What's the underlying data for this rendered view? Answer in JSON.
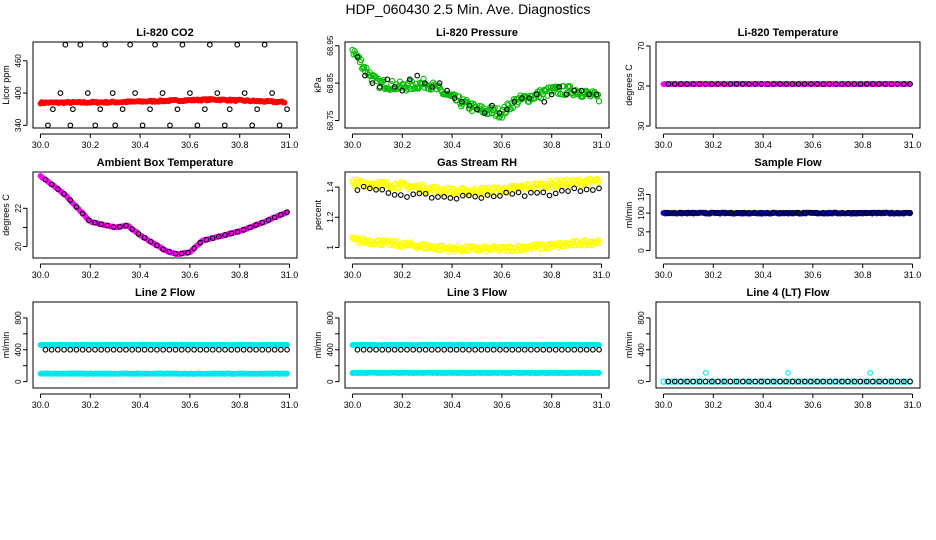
{
  "page_title": "HDP_060430  2.5 Min. Ave. Diagnostics",
  "chart_data": [
    {
      "type": "scatter",
      "title": "Li-820 CO2",
      "ylabel": "Licor ppm",
      "xlim": [
        29.97,
        31.03
      ],
      "ylim": [
        335,
        495
      ],
      "xticks": [
        30.0,
        30.2,
        30.4,
        30.6,
        30.8,
        31.0
      ],
      "xtick_labels": [
        "30.0",
        "30.2",
        "30.4",
        "30.6",
        "30.8",
        "31.0"
      ],
      "yticks": [
        340,
        400,
        460
      ],
      "series": [
        {
          "name": "co2_1min",
          "color": "#ff0000",
          "filled": true,
          "dense": true,
          "x_range": [
            30.0,
            30.98
          ],
          "n": 180,
          "pieces": [
            [
              30.0,
              382
            ],
            [
              30.3,
              383
            ],
            [
              30.7,
              388
            ],
            [
              30.98,
              383
            ]
          ],
          "noise": 1.5
        },
        {
          "name": "co2_diag",
          "color": "#000000",
          "filled": false,
          "x": [
            30.03,
            30.05,
            30.08,
            30.1,
            30.12,
            30.13,
            30.16,
            30.19,
            30.22,
            30.24,
            30.26,
            30.29,
            30.3,
            30.33,
            30.36,
            30.38,
            30.41,
            30.44,
            30.46,
            30.49,
            30.52,
            30.55,
            30.57,
            30.6,
            30.63,
            30.66,
            30.68,
            30.71,
            30.74,
            30.76,
            30.79,
            30.82,
            30.85,
            30.87,
            30.9,
            30.93,
            30.96,
            30.99
          ],
          "y": [
            340,
            370,
            400,
            490,
            340,
            370,
            490,
            400,
            340,
            370,
            490,
            400,
            340,
            370,
            490,
            400,
            340,
            370,
            490,
            400,
            340,
            370,
            490,
            400,
            340,
            370,
            490,
            400,
            340,
            370,
            490,
            400,
            340,
            370,
            490,
            400,
            340,
            370
          ]
        }
      ]
    },
    {
      "type": "scatter",
      "title": "Li-820 Pressure",
      "ylabel": "kPa",
      "xlim": [
        29.97,
        31.03
      ],
      "ylim": [
        68.73,
        68.96
      ],
      "xticks": [
        30.0,
        30.2,
        30.4,
        30.6,
        30.8,
        31.0
      ],
      "xtick_labels": [
        "30.0",
        "30.2",
        "30.4",
        "30.6",
        "30.8",
        "31.0"
      ],
      "yticks": [
        68.75,
        68.85,
        68.95
      ],
      "series": [
        {
          "name": "pressure_1min",
          "color": "#00bb00",
          "filled": false,
          "dense": true,
          "x_range": [
            30.0,
            30.99
          ],
          "n": 230,
          "pieces": [
            [
              30.0,
              68.94
            ],
            [
              30.05,
              68.89
            ],
            [
              30.1,
              68.85
            ],
            [
              30.2,
              68.84
            ],
            [
              30.3,
              68.85
            ],
            [
              30.4,
              68.81
            ],
            [
              30.5,
              68.78
            ],
            [
              30.6,
              68.77
            ],
            [
              30.65,
              68.8
            ],
            [
              30.7,
              68.81
            ],
            [
              30.8,
              68.83
            ],
            [
              30.9,
              68.83
            ],
            [
              30.99,
              68.81
            ]
          ],
          "noise": 0.013
        },
        {
          "name": "pressure_diag",
          "color": "#000000",
          "filled": false,
          "x": [
            30.02,
            30.05,
            30.08,
            30.11,
            30.14,
            30.17,
            30.2,
            30.23,
            30.26,
            30.29,
            30.32,
            30.35,
            30.38,
            30.41,
            30.44,
            30.47,
            30.5,
            30.53,
            30.56,
            30.59,
            30.62,
            30.65,
            30.68,
            30.71,
            30.74,
            30.77,
            30.8,
            30.83,
            30.86,
            30.89,
            30.92,
            30.95,
            30.98
          ],
          "y": [
            68.92,
            68.87,
            68.85,
            68.84,
            68.86,
            68.84,
            68.83,
            68.86,
            68.87,
            68.85,
            68.84,
            68.85,
            68.83,
            68.81,
            68.8,
            68.79,
            68.78,
            68.77,
            68.79,
            68.77,
            68.78,
            68.8,
            68.81,
            68.81,
            68.82,
            68.8,
            68.82,
            68.84,
            68.82,
            68.83,
            68.83,
            68.82,
            68.82
          ]
        }
      ]
    },
    {
      "type": "scatter",
      "title": "Li-820 Temperature",
      "ylabel": "degrees C",
      "xlim": [
        29.97,
        31.03
      ],
      "ylim": [
        29,
        72
      ],
      "xticks": [
        30.0,
        30.2,
        30.4,
        30.6,
        30.8,
        31.0
      ],
      "xtick_labels": [
        "30.0",
        "30.2",
        "30.4",
        "30.6",
        "30.8",
        "31.0"
      ],
      "yticks": [
        30,
        50,
        70
      ],
      "series": [
        {
          "name": "temp_1min",
          "color": "#ff00ff",
          "filled": true,
          "dense": true,
          "x_range": [
            30.0,
            30.99
          ],
          "n": 150,
          "pieces": [
            [
              30.0,
              51
            ],
            [
              30.99,
              51
            ]
          ],
          "noise": 0.1
        },
        {
          "name": "temp_diag",
          "color": "#000000",
          "filled": false,
          "x_range": [
            30.02,
            30.99
          ],
          "n": 40,
          "pieces": [
            [
              30.0,
              51
            ],
            [
              31.0,
              51
            ]
          ],
          "noise": 0
        }
      ]
    },
    {
      "type": "scatter",
      "title": "Ambient Box Temperature",
      "ylabel": "degrees C",
      "xlim": [
        29.97,
        31.03
      ],
      "ylim": [
        19.4,
        23.9
      ],
      "xticks": [
        30.0,
        30.2,
        30.4,
        30.6,
        30.8,
        31.0
      ],
      "xtick_labels": [
        "30.0",
        "30.2",
        "30.4",
        "30.6",
        "30.8",
        "31.0"
      ],
      "yticks": [
        20,
        21,
        22
      ],
      "ytick_labels": [
        "20",
        "",
        "22"
      ],
      "series": [
        {
          "name": "box_temp_1min",
          "color": "#ff00ff",
          "filled": true,
          "dense": true,
          "x_range": [
            30.0,
            30.99
          ],
          "n": 200,
          "pieces": [
            [
              30.0,
              23.7
            ],
            [
              30.1,
              22.7
            ],
            [
              30.2,
              21.3
            ],
            [
              30.3,
              21.0
            ],
            [
              30.35,
              21.1
            ],
            [
              30.4,
              20.6
            ],
            [
              30.5,
              19.8
            ],
            [
              30.55,
              19.6
            ],
            [
              30.6,
              19.7
            ],
            [
              30.65,
              20.3
            ],
            [
              30.8,
              20.8
            ],
            [
              30.9,
              21.3
            ],
            [
              30.99,
              21.8
            ]
          ],
          "noise": 0.02
        },
        {
          "name": "box_temp_diag",
          "color": "#000000",
          "filled": false,
          "x_range": [
            30.02,
            30.99
          ],
          "n": 40,
          "pieces": [
            [
              30.0,
              23.7
            ],
            [
              30.1,
              22.7
            ],
            [
              30.2,
              21.3
            ],
            [
              30.3,
              21.0
            ],
            [
              30.35,
              21.1
            ],
            [
              30.4,
              20.6
            ],
            [
              30.5,
              19.8
            ],
            [
              30.55,
              19.6
            ],
            [
              30.6,
              19.7
            ],
            [
              30.65,
              20.3
            ],
            [
              30.8,
              20.8
            ],
            [
              30.9,
              21.3
            ],
            [
              30.99,
              21.8
            ]
          ],
          "noise": 0
        }
      ]
    },
    {
      "type": "scatter",
      "title": "Gas Stream RH",
      "ylabel": "percent",
      "xlim": [
        29.97,
        31.03
      ],
      "ylim": [
        0.93,
        1.5
      ],
      "xticks": [
        30.0,
        30.2,
        30.4,
        30.6,
        30.8,
        31.0
      ],
      "xtick_labels": [
        "30.0",
        "30.2",
        "30.4",
        "30.6",
        "30.8",
        "31.0"
      ],
      "yticks": [
        1.0,
        1.2,
        1.4
      ],
      "series": [
        {
          "name": "rh_high_1min",
          "color": "#ffff00",
          "filled": false,
          "dense": true,
          "x_range": [
            30.0,
            30.99
          ],
          "n": 230,
          "pieces": [
            [
              30.0,
              1.43
            ],
            [
              30.2,
              1.41
            ],
            [
              30.4,
              1.37
            ],
            [
              30.6,
              1.38
            ],
            [
              30.8,
              1.42
            ],
            [
              30.99,
              1.44
            ]
          ],
          "noise": 0.022
        },
        {
          "name": "rh_low_1min",
          "color": "#ffff00",
          "filled": false,
          "dense": true,
          "x_range": [
            30.0,
            30.99
          ],
          "n": 230,
          "pieces": [
            [
              30.0,
              1.05
            ],
            [
              30.2,
              1.02
            ],
            [
              30.4,
              0.99
            ],
            [
              30.6,
              0.99
            ],
            [
              30.8,
              1.01
            ],
            [
              30.99,
              1.04
            ]
          ],
          "noise": 0.018
        },
        {
          "name": "rh_diag",
          "color": "#000000",
          "filled": false,
          "x_range": [
            30.02,
            30.99
          ],
          "n": 40,
          "pieces": [
            [
              30.0,
              1.4
            ],
            [
              30.2,
              1.35
            ],
            [
              30.4,
              1.33
            ],
            [
              30.6,
              1.35
            ],
            [
              30.8,
              1.36
            ],
            [
              30.99,
              1.4
            ]
          ],
          "noise": 0.015
        }
      ]
    },
    {
      "type": "scatter",
      "title": "Sample Flow",
      "ylabel": "ml/min",
      "xlim": [
        29.97,
        31.03
      ],
      "ylim": [
        -20,
        210
      ],
      "xticks": [
        30.0,
        30.2,
        30.4,
        30.6,
        30.8,
        31.0
      ],
      "xtick_labels": [
        "30.0",
        "30.2",
        "30.4",
        "30.6",
        "30.8",
        "31.0"
      ],
      "yticks": [
        0,
        50,
        100,
        150
      ],
      "ytick_labels": [
        "0",
        "50",
        "100",
        "150"
      ],
      "series": [
        {
          "name": "sample_flow_1min",
          "color": "#0000aa",
          "filled": true,
          "dense": true,
          "x_range": [
            30.0,
            30.99
          ],
          "n": 230,
          "pieces": [
            [
              30.0,
              100
            ],
            [
              30.99,
              100
            ]
          ],
          "noise": 1.5
        },
        {
          "name": "sample_flow_diag",
          "color": "#000000",
          "filled": false,
          "x_range": [
            30.02,
            30.99
          ],
          "n": 40,
          "pieces": [
            [
              30.0,
              101
            ],
            [
              31.0,
              101
            ]
          ],
          "noise": 0
        }
      ]
    },
    {
      "type": "scatter",
      "title": "Line 2 Flow",
      "ylabel": "ml/min",
      "xlim": [
        29.97,
        31.03
      ],
      "ylim": [
        -80,
        1000
      ],
      "xticks": [
        30.0,
        30.2,
        30.4,
        30.6,
        30.8,
        31.0
      ],
      "xtick_labels": [
        "30.0",
        "30.2",
        "30.4",
        "30.6",
        "30.8",
        "31.0"
      ],
      "yticks": [
        0,
        200,
        400,
        600,
        800
      ],
      "ytick_labels": [
        "0",
        "",
        "400",
        "",
        "800"
      ],
      "series": [
        {
          "name": "line2_high_1min",
          "color": "#00e5ee",
          "filled": true,
          "dense": true,
          "x_range": [
            30.0,
            30.99
          ],
          "n": 230,
          "pieces": [
            [
              30.0,
              460
            ],
            [
              30.99,
              460
            ]
          ],
          "noise": 3
        },
        {
          "name": "line2_low_1min",
          "color": "#00e5ee",
          "filled": true,
          "dense": true,
          "x_range": [
            30.0,
            30.99
          ],
          "n": 230,
          "pieces": [
            [
              30.0,
              100
            ],
            [
              30.99,
              100
            ]
          ],
          "noise": 3
        },
        {
          "name": "line2_diag",
          "color": "#000000",
          "filled": false,
          "x_range": [
            30.02,
            30.99
          ],
          "n": 40,
          "pieces": [
            [
              30.0,
              400
            ],
            [
              31.0,
              400
            ]
          ],
          "noise": 0
        }
      ]
    },
    {
      "type": "scatter",
      "title": "Line 3 Flow",
      "ylabel": "ml/min",
      "xlim": [
        29.97,
        31.03
      ],
      "ylim": [
        -80,
        1000
      ],
      "xticks": [
        30.0,
        30.2,
        30.4,
        30.6,
        30.8,
        31.0
      ],
      "xtick_labels": [
        "30.0",
        "30.2",
        "30.4",
        "30.6",
        "30.8",
        "31.0"
      ],
      "yticks": [
        0,
        200,
        400,
        600,
        800
      ],
      "ytick_labels": [
        "0",
        "",
        "400",
        "",
        "800"
      ],
      "series": [
        {
          "name": "line3_high_1min",
          "color": "#00e5ee",
          "filled": true,
          "dense": true,
          "x_range": [
            30.0,
            30.99
          ],
          "n": 230,
          "pieces": [
            [
              30.0,
              460
            ],
            [
              30.99,
              460
            ]
          ],
          "noise": 3
        },
        {
          "name": "line3_low_1min",
          "color": "#00e5ee",
          "filled": true,
          "dense": true,
          "x_range": [
            30.0,
            30.99
          ],
          "n": 230,
          "pieces": [
            [
              30.0,
              110
            ],
            [
              30.99,
              110
            ]
          ],
          "noise": 3
        },
        {
          "name": "line3_diag",
          "color": "#000000",
          "filled": false,
          "x_range": [
            30.02,
            30.99
          ],
          "n": 40,
          "pieces": [
            [
              30.0,
              400
            ],
            [
              31.0,
              400
            ]
          ],
          "noise": 0
        }
      ]
    },
    {
      "type": "scatter",
      "title": "Line 4 (LT) Flow",
      "ylabel": "ml/min",
      "xlim": [
        29.97,
        31.03
      ],
      "ylim": [
        -80,
        1000
      ],
      "xticks": [
        30.0,
        30.2,
        30.4,
        30.6,
        30.8,
        31.0
      ],
      "xtick_labels": [
        "30.0",
        "30.2",
        "30.4",
        "30.6",
        "30.8",
        "31.0"
      ],
      "yticks": [
        0,
        200,
        400,
        600,
        800
      ],
      "ytick_labels": [
        "0",
        "",
        "400",
        "",
        "800"
      ],
      "series": [
        {
          "name": "line4_1min",
          "color": "#00e5ee",
          "filled": false,
          "dense": true,
          "x_range": [
            30.0,
            30.99
          ],
          "n": 60,
          "pieces": [
            [
              30.0,
              0
            ],
            [
              30.99,
              0
            ]
          ],
          "noise": 0
        },
        {
          "name": "line4_diag",
          "color": "#000000",
          "filled": false,
          "x_range": [
            30.02,
            30.99
          ],
          "n": 40,
          "pieces": [
            [
              30.0,
              2
            ],
            [
              31.0,
              2
            ]
          ],
          "noise": 0
        },
        {
          "name": "line4_spikes",
          "color": "#00e5ee",
          "filled": false,
          "x": [
            30.17,
            30.5,
            30.83
          ],
          "y": [
            110,
            110,
            110
          ]
        }
      ]
    }
  ]
}
